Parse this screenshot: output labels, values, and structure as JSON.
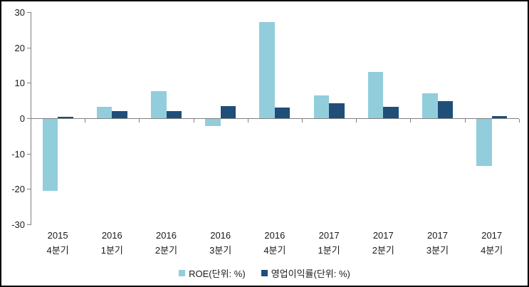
{
  "chart_data": {
    "type": "bar",
    "title": "",
    "xlabel": "",
    "ylabel": "",
    "categories": [
      [
        "2015",
        "4분기"
      ],
      [
        "2016",
        "1분기"
      ],
      [
        "2016",
        "2분기"
      ],
      [
        "2016",
        "3분기"
      ],
      [
        "2016",
        "4분기"
      ],
      [
        "2017",
        "1분기"
      ],
      [
        "2017",
        "2분기"
      ],
      [
        "2017",
        "3분기"
      ],
      [
        "2017",
        "4분기"
      ]
    ],
    "series": [
      {
        "name": "ROE(단위: %)",
        "color": "#92CDDC",
        "values": [
          -20.3,
          3.2,
          7.6,
          -2.0,
          27.2,
          6.5,
          13.0,
          7.0,
          -13.3
        ]
      },
      {
        "name": "영업이익률(단위: %)",
        "color": "#1F4E79",
        "values": [
          0.4,
          2.1,
          2.1,
          3.5,
          3.0,
          4.3,
          3.3,
          4.8,
          0.7
        ]
      }
    ],
    "yticks": [
      30,
      20,
      10,
      0,
      -10,
      -20,
      -30
    ],
    "ylim": [
      -30,
      30
    ],
    "grid": false,
    "legend_position": "bottom",
    "axis_color": "#808080",
    "text_color": "#1a1a1a",
    "background_color": "#ffffff",
    "frame_border_color": "#000000"
  }
}
